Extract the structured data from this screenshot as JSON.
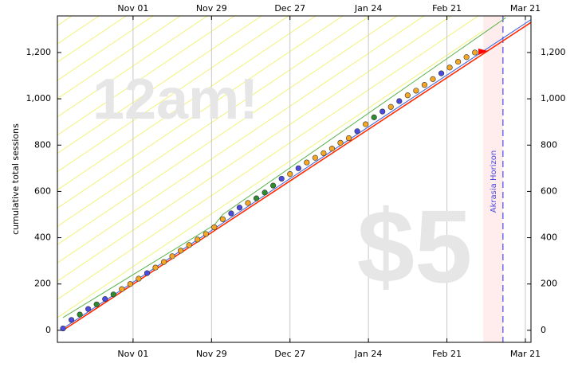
{
  "chart_data": {
    "type": "scatter",
    "ylabel": "cumulative total sessions",
    "xlim": [
      "Oct 05",
      "Mar 23"
    ],
    "xticks": [
      "Nov 01",
      "Nov 29",
      "Dec 27",
      "Jan 24",
      "Feb 21",
      "Mar 21"
    ],
    "ylim": [
      -52,
      1358
    ],
    "yticks": [
      0,
      200,
      400,
      600,
      800,
      {
        "value": 1000,
        "label": "1,000"
      },
      {
        "value": 1200,
        "label": "1,200"
      }
    ],
    "grid_x": true,
    "series": [
      {
        "color": "#f5a623",
        "x": [
          "Oct 28",
          "Oct 31",
          "Nov 03",
          "Nov 09",
          "Nov 12",
          "Nov 15",
          "Nov 18",
          "Nov 21",
          "Nov 24",
          "Nov 27",
          "Nov 30",
          "Dec 03",
          "Dec 12",
          "Dec 27",
          "Jan 02",
          "Jan 05",
          "Jan 08",
          "Jan 11",
          "Jan 14",
          "Jan 17",
          "Jan 23",
          "Feb 01",
          "Feb 07",
          "Feb 10",
          "Feb 13",
          "Feb 16",
          "Feb 22",
          "Feb 25",
          "Feb 28",
          "Mar 03"
        ],
        "values": [
          178,
          200,
          223,
          271,
          295,
          320,
          344,
          368,
          392,
          416,
          445,
          480,
          550,
          675,
          725,
          745,
          765,
          785,
          810,
          830,
          890,
          965,
          1015,
          1035,
          1060,
          1085,
          1135,
          1160,
          1180,
          1200
        ]
      },
      {
        "color": "#4a4ae0",
        "x": [
          "Oct 07",
          "Oct 10",
          "Oct 16",
          "Oct 22",
          "Nov 06",
          "Dec 06",
          "Dec 09",
          "Dec 24",
          "Dec 30",
          "Jan 20",
          "Jan 29",
          "Feb 04",
          "Feb 19"
        ],
        "values": [
          8,
          45,
          92,
          135,
          247,
          505,
          530,
          655,
          700,
          860,
          945,
          990,
          1110
        ]
      },
      {
        "color": "#2e8b2e",
        "x": [
          "Oct 13",
          "Oct 19",
          "Oct 25",
          "Dec 15",
          "Dec 18",
          "Dec 21",
          "Jan 26"
        ],
        "values": [
          68,
          112,
          155,
          570,
          595,
          625,
          920
        ]
      }
    ],
    "lines": [
      {
        "color": "#5ab34a",
        "x": [
          "Oct 07",
          "Nov 30",
          "Dec 03",
          "Mar 14"
        ],
        "values": [
          55,
          455,
          500,
          1350
        ]
      },
      {
        "color": "#ff2a00",
        "x": [
          "Oct 07",
          "Mar 23"
        ],
        "values": [
          0,
          1330
        ]
      },
      {
        "color": "#3a5fe0",
        "x": [
          "Oct 07",
          "Mar 23"
        ],
        "values": [
          8,
          1342
        ]
      }
    ],
    "shade_start": "Mar 06",
    "horizon": {
      "x": "Mar 13",
      "label": "Akrasia Horizon",
      "color": "#4a4ae0"
    },
    "watermarks": [
      "12am!",
      "$5"
    ]
  }
}
